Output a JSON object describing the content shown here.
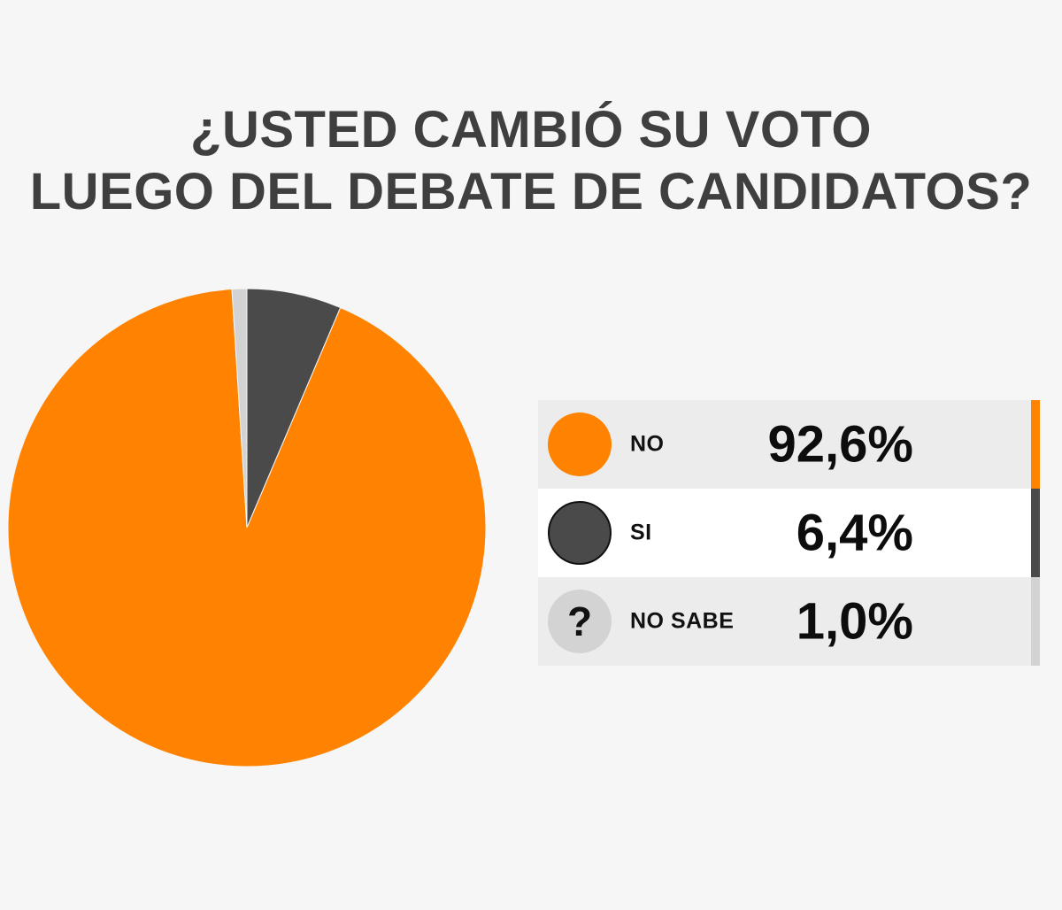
{
  "title_lines": [
    "¿USTED CAMBIÓ SU VOTO",
    "LUEGO DEL DEBATE DE CANDIDATOS?"
  ],
  "colors": {
    "no": "#ff8200",
    "si": "#4a4a4a",
    "no_sabe": "#d3d3d3",
    "background": "#f6f6f6"
  },
  "chart_data": {
    "type": "pie",
    "title": "¿USTED CAMBIÓ SU VOTO LUEGO DEL DEBATE DE CANDIDATOS?",
    "start_angle_deg": 0,
    "direction": "clockwise-from-top: SI, NO, NO SABE",
    "slices": [
      {
        "label": "NO",
        "value": 92.6,
        "display": "92,6%",
        "color": "#ff8200"
      },
      {
        "label": "SI",
        "value": 6.4,
        "display": "6,4%",
        "color": "#4a4a4a"
      },
      {
        "label": "NO SABE",
        "value": 1.0,
        "display": "1,0%",
        "color": "#d3d3d3",
        "icon": "question-mark-icon",
        "icon_text": "?"
      }
    ],
    "legend_placement": "right"
  }
}
